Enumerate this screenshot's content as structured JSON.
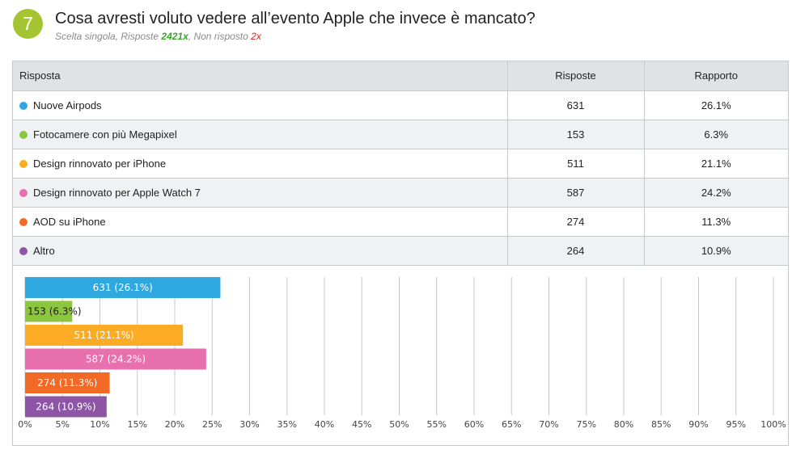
{
  "question": {
    "number": "7",
    "title": "Cosa avresti voluto vedere all’evento Apple che invece è mancato?",
    "meta_prefix": "Scelta singola, Risposte ",
    "answers_count": "2421x",
    "meta_middle": ", Non risposto ",
    "unanswered_count": "2x"
  },
  "table": {
    "headers": [
      "Risposta",
      "Risposte",
      "Rapporto"
    ],
    "rows": [
      {
        "label": "Nuove Airpods",
        "count": "631",
        "ratio": "26.1%",
        "color": "#2fa8e0"
      },
      {
        "label": "Fotocamere con più Megapixel",
        "count": "153",
        "ratio": "6.3%",
        "color": "#8cc63e"
      },
      {
        "label": "Design rinnovato per iPhone",
        "count": "511",
        "ratio": "21.1%",
        "color": "#fbac24"
      },
      {
        "label": "Design rinnovato per Apple Watch 7",
        "count": "587",
        "ratio": "24.2%",
        "color": "#e970ae"
      },
      {
        "label": "AOD su iPhone",
        "count": "274",
        "ratio": "11.3%",
        "color": "#f26a25"
      },
      {
        "label": "Altro",
        "count": "264",
        "ratio": "10.9%",
        "color": "#8e55a7"
      }
    ]
  },
  "chart_data": {
    "type": "bar",
    "orientation": "horizontal",
    "categories": [
      "Nuove Airpods",
      "Fotocamere con più Megapixel",
      "Design rinnovato per iPhone",
      "Design rinnovato per Apple Watch 7",
      "AOD su iPhone",
      "Altro"
    ],
    "values": [
      26.1,
      6.3,
      21.1,
      24.2,
      11.3,
      10.9
    ],
    "bar_labels": [
      "631 (26.1%)",
      "153 (6.3%)",
      "511 (21.1%)",
      "587 (24.2%)",
      "274 (11.3%)",
      "264 (10.9%)"
    ],
    "colors": [
      "#2fa8e0",
      "#8cc63e",
      "#fbac24",
      "#e970ae",
      "#f26a25",
      "#8e55a7"
    ],
    "xlim": [
      0,
      100
    ],
    "xticks": [
      0,
      5,
      10,
      15,
      20,
      25,
      30,
      35,
      40,
      45,
      50,
      55,
      60,
      65,
      70,
      75,
      80,
      85,
      90,
      95,
      100
    ],
    "xtick_labels": [
      "0%",
      "5%",
      "10%",
      "15%",
      "20%",
      "25%",
      "30%",
      "35%",
      "40%",
      "45%",
      "50%",
      "55%",
      "60%",
      "65%",
      "70%",
      "75%",
      "80%",
      "85%",
      "90%",
      "95%",
      "100%"
    ],
    "grid": true
  }
}
